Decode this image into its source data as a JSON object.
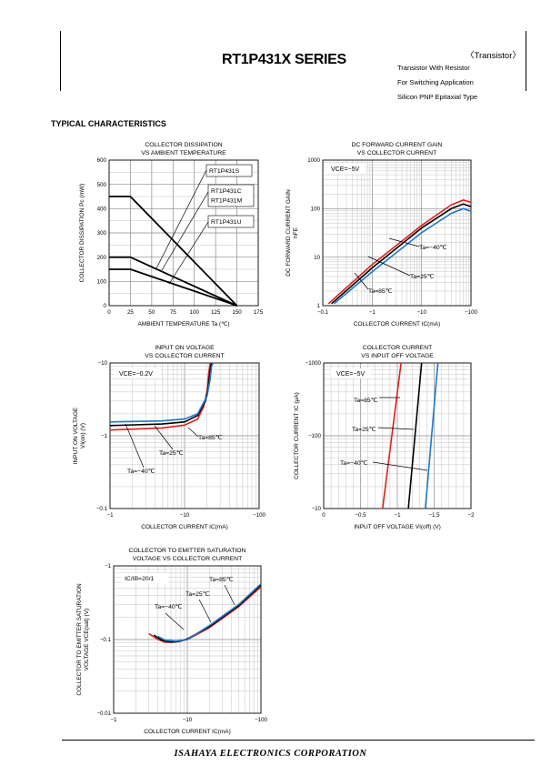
{
  "header": {
    "title": "RT1P431X SERIES",
    "category": "〈Transistor〉",
    "descriptions": [
      "Transistor With Resistor",
      "For Switching Application",
      "Silicon PNP Epitaxial Type"
    ]
  },
  "section_title": "TYPICAL CHARACTERISTICS",
  "footer": {
    "company": "ISAHAYA  ELECTRONICS  CORPORATION"
  },
  "chart_data": [
    {
      "type": "line",
      "title": [
        "COLLECTOR DISSIPATION",
        "VS AMBIENT TEMPERATURE"
      ],
      "xlabel": "AMBIENT TEMPERATURE Ta (℃)",
      "ylabel": "COLLECTOR DISSIPATION Pc (mW)",
      "xlim": [
        0,
        175
      ],
      "ylim": [
        0,
        600
      ],
      "xticks": [
        0,
        25,
        50,
        75,
        100,
        125,
        150,
        175
      ],
      "yticks": [
        0,
        100,
        200,
        300,
        400,
        500,
        600
      ],
      "xtick_labels": [
        "0",
        "25",
        "50",
        "75",
        "100",
        "125",
        "150",
        "175"
      ],
      "ytick_labels": [
        "0",
        "100",
        "200",
        "300",
        "400",
        "500",
        "600"
      ],
      "series": [
        {
          "name": "RT1P431S",
          "x": [
            0,
            25,
            150
          ],
          "y": [
            450,
            450,
            0
          ]
        },
        {
          "name": "RT1P431C RT1P431M",
          "x": [
            0,
            25,
            150
          ],
          "y": [
            200,
            200,
            0
          ]
        },
        {
          "name": "RT1P431U",
          "x": [
            0,
            25,
            150
          ],
          "y": [
            150,
            150,
            0
          ]
        }
      ],
      "annotations": [
        {
          "text": "RT1P431S",
          "target": 0
        },
        {
          "text": "RT1P431C",
          "text2": "RT1P431M",
          "target": 1
        },
        {
          "text": "RT1P431U",
          "target": 2
        }
      ]
    },
    {
      "type": "line",
      "title": [
        "DC FORWARD CURRENT GAIN",
        "VS COLLECTOR CURRENT"
      ],
      "xlabel": "COLLECTOR CURRENT  IC(mA)",
      "ylabel": "DC FORWARD CURRENT GAIN",
      "ylabel2": "hFE",
      "xscale": "log",
      "yscale": "log",
      "xlim": [
        0.1,
        100
      ],
      "ylim": [
        1,
        1000
      ],
      "xtick_labels": [
        "−0.1",
        "−1",
        "−10",
        "−100"
      ],
      "ytick_labels": [
        "1",
        "10",
        "100",
        "1000"
      ],
      "condition": "VCE=−5V",
      "series": [
        {
          "name": "Ta=85℃",
          "color": "#e0201e",
          "x": [
            0.13,
            1,
            10,
            40,
            70,
            100
          ],
          "y": [
            1.1,
            7,
            45,
            120,
            150,
            135
          ]
        },
        {
          "name": "Ta=25℃",
          "color": "#000000",
          "x": [
            0.15,
            1,
            10,
            40,
            70,
            100
          ],
          "y": [
            1.1,
            6,
            40,
            100,
            125,
            110
          ]
        },
        {
          "name": "Ta=−40℃",
          "color": "#1e78c8",
          "x": [
            0.17,
            1,
            10,
            40,
            70,
            100
          ],
          "y": [
            1.1,
            5,
            32,
            80,
            100,
            88
          ]
        }
      ],
      "annotations": [
        "Ta=−40℃",
        "Ta=25℃",
        "Ta=85℃"
      ]
    },
    {
      "type": "line",
      "title": [
        "INPUT ON VOLTAGE",
        "VS COLLECTOR CURRENT"
      ],
      "xlabel": "COLLECTOR CURRENT  IC(mA)",
      "ylabel": "INPUT ON VOLTAGE",
      "ylabel2": "VI(on) (V)",
      "xscale": "log",
      "yscale": "log",
      "xlim": [
        1,
        100
      ],
      "ylim": [
        0.1,
        10
      ],
      "xtick_labels": [
        "−1",
        "−10",
        "−100"
      ],
      "ytick_labels": [
        "−0.1",
        "−1",
        "−10"
      ],
      "condition": "VCE=−0.2V",
      "series": [
        {
          "name": "Ta=85℃",
          "color": "#e0201e",
          "x": [
            1,
            5,
            10,
            15,
            18,
            20,
            21,
            22
          ],
          "y": [
            1.2,
            1.28,
            1.4,
            1.7,
            2.5,
            4,
            7,
            10
          ]
        },
        {
          "name": "Ta=25℃",
          "color": "#000000",
          "x": [
            1,
            5,
            10,
            15,
            19,
            21,
            22,
            23
          ],
          "y": [
            1.38,
            1.45,
            1.55,
            1.9,
            3,
            5,
            8,
            10
          ]
        },
        {
          "name": "Ta=−40℃",
          "color": "#1e78c8",
          "x": [
            1,
            5,
            10,
            15,
            20,
            22,
            23,
            24
          ],
          "y": [
            1.55,
            1.6,
            1.7,
            2.0,
            3.5,
            6,
            9,
            10
          ]
        }
      ],
      "annotations": [
        "Ta=85℃",
        "Ta=25℃",
        "Ta=−40℃"
      ]
    },
    {
      "type": "line",
      "title": [
        "COLLECTOR CURRENT",
        "VS INPUT OFF VOLTAGE"
      ],
      "xlabel": "INPUT OFF VOLTAGE VI(off) (V)",
      "ylabel": "COLLECTOR CURRENT IC (μA)",
      "yscale": "log",
      "xlim": [
        0,
        2
      ],
      "ylim": [
        10,
        1000
      ],
      "xtick_labels": [
        "0",
        "−0.5",
        "−1",
        "−1.5",
        "−2"
      ],
      "ytick_labels": [
        "−10",
        "−100",
        "−1000"
      ],
      "condition": "VCE=−5V",
      "series": [
        {
          "name": "Ta=85℃",
          "color": "#e0201e",
          "x": [
            0.8,
            1.05
          ],
          "y": [
            10,
            1000
          ]
        },
        {
          "name": "Ta=25℃",
          "color": "#000000",
          "x": [
            1.15,
            1.33
          ],
          "y": [
            10,
            1000
          ]
        },
        {
          "name": "Ta=−40℃",
          "color": "#1e78c8",
          "x": [
            1.38,
            1.55
          ],
          "y": [
            10,
            1000
          ]
        }
      ],
      "annotations": [
        "Ta=85℃",
        "Ta=25℃",
        "Ta=−40℃"
      ]
    },
    {
      "type": "line",
      "title": [
        "COLLECTOR TO EMITTER SATURATION",
        "VOLTAGE VS COLLECTOR CURRENT"
      ],
      "xlabel": "COLLECTOR CURRENT  IC(mA)",
      "ylabel": "COLLECTOR TO EMITTER SATURATION",
      "ylabel2": "VOLTAGE VCE(sat) (V)",
      "xscale": "log",
      "yscale": "log",
      "xlim": [
        1,
        100
      ],
      "ylim": [
        0.01,
        1
      ],
      "xtick_labels": [
        "−1",
        "−10",
        "−100"
      ],
      "ytick_labels": [
        "−0.01",
        "−0.1",
        "−1"
      ],
      "condition": "IC/IB=20/1",
      "series": [
        {
          "name": "Ta=85℃",
          "color": "#e0201e",
          "x": [
            3,
            4,
            5,
            7,
            10,
            20,
            50,
            100
          ],
          "y": [
            0.12,
            0.1,
            0.092,
            0.093,
            0.1,
            0.145,
            0.28,
            0.52
          ]
        },
        {
          "name": "Ta=25℃",
          "color": "#000000",
          "x": [
            3.5,
            4.5,
            6,
            8,
            10,
            20,
            50,
            100
          ],
          "y": [
            0.115,
            0.098,
            0.092,
            0.095,
            0.102,
            0.15,
            0.29,
            0.55
          ]
        },
        {
          "name": "Ta=−40℃",
          "color": "#1e78c8",
          "x": [
            4,
            5,
            7,
            10,
            20,
            50,
            100
          ],
          "y": [
            0.11,
            0.098,
            0.095,
            0.1,
            0.155,
            0.3,
            0.57
          ]
        }
      ],
      "annotations": [
        "Ta=85℃",
        "Ta=25℃",
        "Ta=−40℃"
      ]
    }
  ]
}
